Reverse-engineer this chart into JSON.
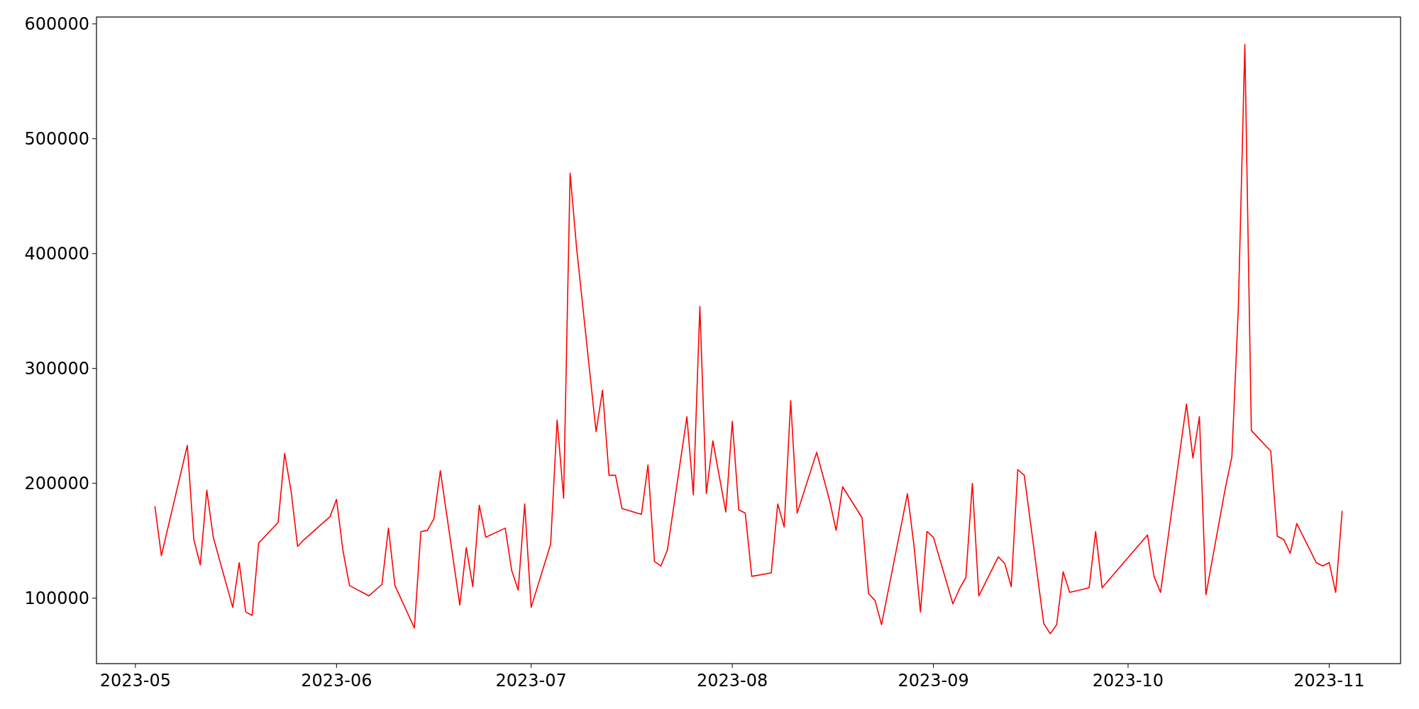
{
  "chart_data": {
    "type": "line",
    "x": [
      "2023-05-04",
      "2023-05-05",
      "2023-05-09",
      "2023-05-10",
      "2023-05-11",
      "2023-05-12",
      "2023-05-13",
      "2023-05-16",
      "2023-05-17",
      "2023-05-18",
      "2023-05-19",
      "2023-05-20",
      "2023-05-23",
      "2023-05-24",
      "2023-05-25",
      "2023-05-26",
      "2023-05-27",
      "2023-05-31",
      "2023-06-01",
      "2023-06-02",
      "2023-06-03",
      "2023-06-06",
      "2023-06-08",
      "2023-06-09",
      "2023-06-10",
      "2023-06-13",
      "2023-06-14",
      "2023-06-15",
      "2023-06-16",
      "2023-06-17",
      "2023-06-20",
      "2023-06-21",
      "2023-06-22",
      "2023-06-23",
      "2023-06-24",
      "2023-06-27",
      "2023-06-28",
      "2023-06-29",
      "2023-06-30",
      "2023-07-01",
      "2023-07-04",
      "2023-07-05",
      "2023-07-06",
      "2023-07-07",
      "2023-07-08",
      "2023-07-11",
      "2023-07-12",
      "2023-07-13",
      "2023-07-14",
      "2023-07-15",
      "2023-07-18",
      "2023-07-19",
      "2023-07-20",
      "2023-07-21",
      "2023-07-22",
      "2023-07-25",
      "2023-07-26",
      "2023-07-27",
      "2023-07-28",
      "2023-07-29",
      "2023-07-31",
      "2023-08-01",
      "2023-08-02",
      "2023-08-03",
      "2023-08-04",
      "2023-08-07",
      "2023-08-08",
      "2023-08-09",
      "2023-08-10",
      "2023-08-11",
      "2023-08-14",
      "2023-08-16",
      "2023-08-17",
      "2023-08-18",
      "2023-08-21",
      "2023-08-22",
      "2023-08-23",
      "2023-08-24",
      "2023-08-28",
      "2023-08-29",
      "2023-08-30",
      "2023-08-31",
      "2023-09-01",
      "2023-09-04",
      "2023-09-05",
      "2023-09-06",
      "2023-09-07",
      "2023-09-08",
      "2023-09-11",
      "2023-09-12",
      "2023-09-13",
      "2023-09-14",
      "2023-09-15",
      "2023-09-18",
      "2023-09-19",
      "2023-09-20",
      "2023-09-21",
      "2023-09-22",
      "2023-09-25",
      "2023-09-26",
      "2023-09-27",
      "2023-10-04",
      "2023-10-05",
      "2023-10-06",
      "2023-10-10",
      "2023-10-11",
      "2023-10-12",
      "2023-10-13",
      "2023-10-16",
      "2023-10-17",
      "2023-10-18",
      "2023-10-19",
      "2023-10-20",
      "2023-10-23",
      "2023-10-24",
      "2023-10-25",
      "2023-10-26",
      "2023-10-27",
      "2023-10-30",
      "2023-10-31",
      "2023-11-01",
      "2023-11-02",
      "2023-11-03"
    ],
    "series": [
      {
        "color": "#ff0000",
        "values": [
          180000,
          137000,
          233000,
          151000,
          129000,
          194000,
          153000,
          92000,
          131000,
          88000,
          85000,
          148000,
          166000,
          226000,
          193000,
          145000,
          151000,
          171000,
          186000,
          141000,
          111000,
          102000,
          112000,
          161000,
          111000,
          74000,
          158000,
          159000,
          169000,
          211000,
          94000,
          144000,
          110000,
          181000,
          153000,
          161000,
          124000,
          107000,
          182000,
          92000,
          147000,
          255000,
          187000,
          470000,
          405000,
          245000,
          281000,
          207000,
          207000,
          178000,
          173000,
          216000,
          132000,
          128000,
          142000,
          258000,
          190000,
          354000,
          191000,
          237000,
          175000,
          254000,
          177000,
          174000,
          119000,
          122000,
          182000,
          162000,
          272000,
          174000,
          227000,
          185000,
          159000,
          197000,
          170000,
          104000,
          98000,
          77000,
          191000,
          146000,
          88000,
          158000,
          153000,
          95000,
          108000,
          118000,
          200000,
          102000,
          136000,
          130000,
          110000,
          212000,
          207000,
          78000,
          69000,
          77000,
          123000,
          105000,
          109000,
          158000,
          109000,
          155000,
          119000,
          105000,
          269000,
          222000,
          258000,
          103000,
          196000,
          223000,
          353000,
          582000,
          246000,
          228000,
          154000,
          151000,
          139000,
          165000,
          131000,
          128000,
          131000,
          105000,
          176000
        ]
      }
    ],
    "xlim": [
      "2023-04-25",
      "2023-11-12"
    ],
    "xticks": [
      "2023-05",
      "2023-06",
      "2023-07",
      "2023-08",
      "2023-09",
      "2023-10",
      "2023-11"
    ],
    "ylim": [
      43000,
      606000
    ],
    "yticks": [
      100000,
      200000,
      300000,
      400000,
      500000,
      600000
    ],
    "grid": false,
    "line_style": "solid",
    "marker": "none"
  }
}
